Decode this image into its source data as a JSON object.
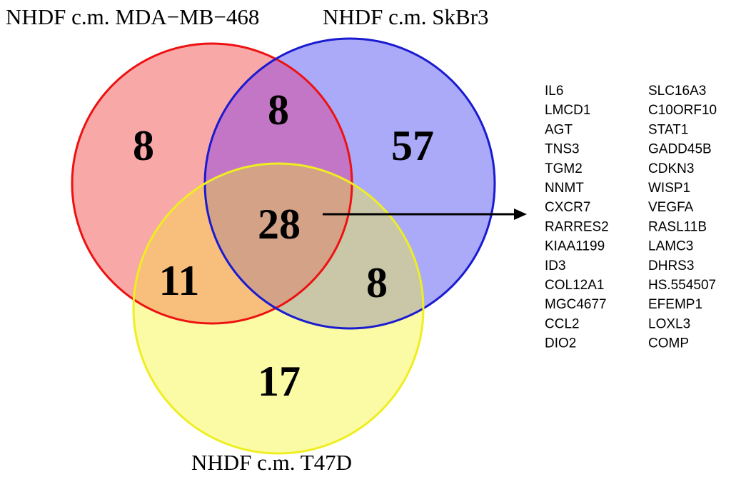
{
  "diagram": {
    "type": "venn-3",
    "sets": [
      {
        "name": "NHDF c.m. MDA−MB−468",
        "fill": "#f9a8a8",
        "stroke": "#ee1111"
      },
      {
        "name": "NHDF c.m. SkBr3",
        "fill": "#aaaaf9",
        "stroke": "#1a1ad0"
      },
      {
        "name": "NHDF c.m. T47D",
        "fill": "#fbfba6",
        "stroke": "#eeee22"
      }
    ],
    "region_colors": {
      "mda_skbr3": "#c476c6",
      "mda_t47d": "#f8bf7c",
      "skbr3_t47d": "#c9c7a8",
      "all_three": "#d3a287"
    },
    "counts": {
      "mda_only": "8",
      "skbr3_only": "57",
      "t47d_only": "17",
      "mda_skbr3": "8",
      "mda_t47d": "11",
      "skbr3_t47d": "8",
      "all_three": "28"
    },
    "shared_genes_col1": [
      "IL6",
      "LMCD1",
      "AGT",
      "TNS3",
      "TGM2",
      "NNMT",
      "CXCR7",
      "RARRES2",
      "KIAA1199",
      "ID3",
      "COL12A1",
      "MGC4677",
      "CCL2",
      "DIO2"
    ],
    "shared_genes_col2": [
      "SLC16A3",
      "C10ORF10",
      "STAT1",
      "GADD45B",
      "CDKN3",
      "WISP1",
      "VEGFA",
      "RASL11B",
      "LAMC3",
      "DHRS3",
      "HS.554507",
      "EFEMP1",
      "LOXL3",
      "COMP"
    ]
  }
}
